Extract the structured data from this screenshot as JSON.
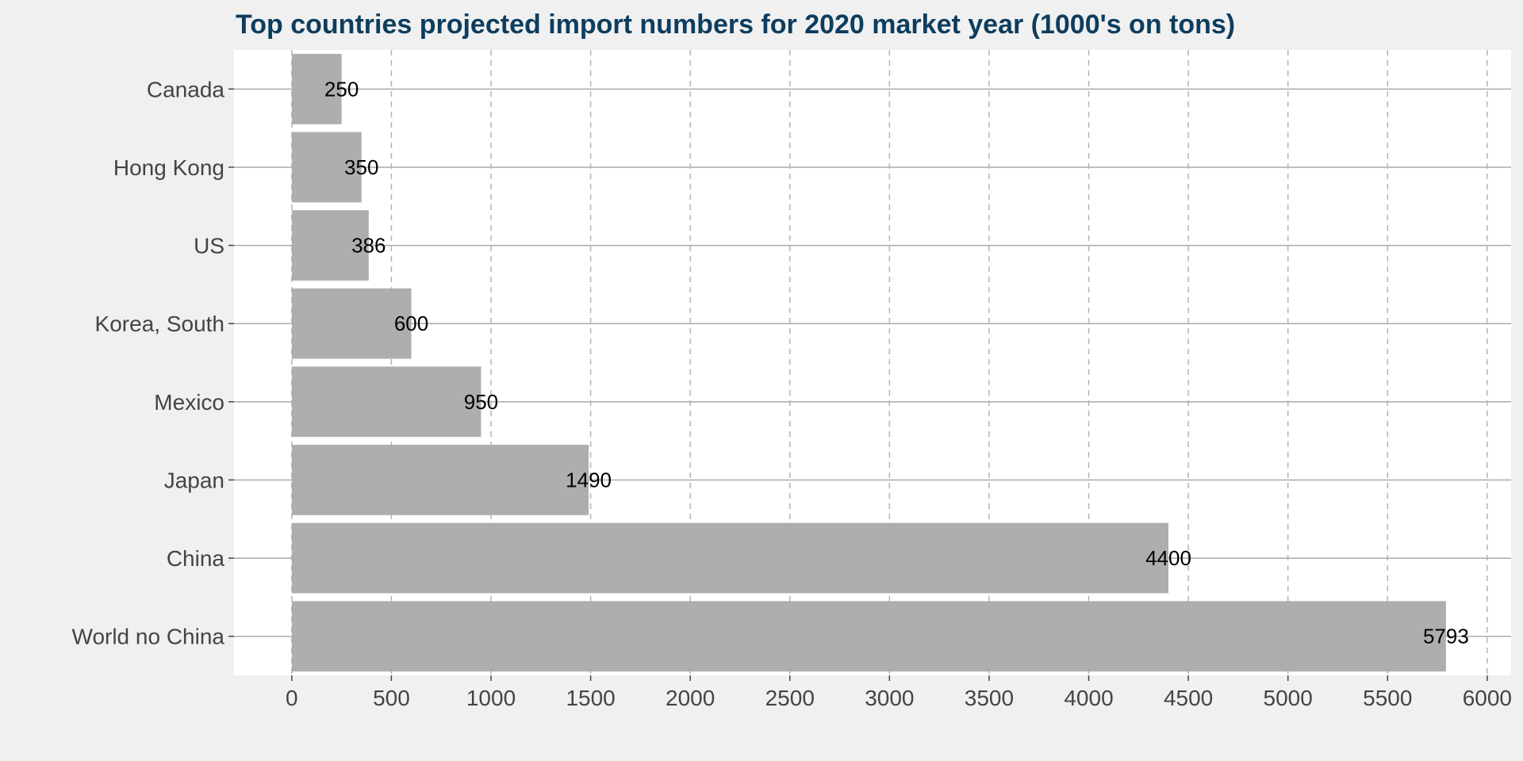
{
  "chart_data": {
    "type": "bar",
    "orientation": "horizontal",
    "title": "Top countries projected import numbers for 2020 market year (1000's on tons)",
    "categories": [
      "Canada",
      "Hong Kong",
      "US",
      "Korea, South",
      "Mexico",
      "Japan",
      "China",
      "World no China"
    ],
    "values": [
      250,
      350,
      386,
      600,
      950,
      1490,
      4400,
      5793
    ],
    "data_labels": [
      "250",
      "350",
      "386",
      "600",
      "950",
      "1490",
      "4400",
      "5793"
    ],
    "x_ticks": [
      "0",
      "500",
      "1000",
      "1500",
      "2000",
      "2500",
      "3000",
      "3500",
      "4000",
      "4500",
      "5000",
      "5500",
      "6000"
    ],
    "xlim": [
      -290,
      6120
    ],
    "xlabel": "",
    "ylabel": "",
    "grid": true,
    "legend": "none"
  },
  "colors": {
    "background": "#f0f0f0",
    "panel": "#ffffff",
    "bar": "#aaaaaa",
    "title": "#0d3d5e",
    "axis_text": "#444444",
    "hgrid": "#aaaaaa",
    "vgrid": "#b4b4b4"
  }
}
